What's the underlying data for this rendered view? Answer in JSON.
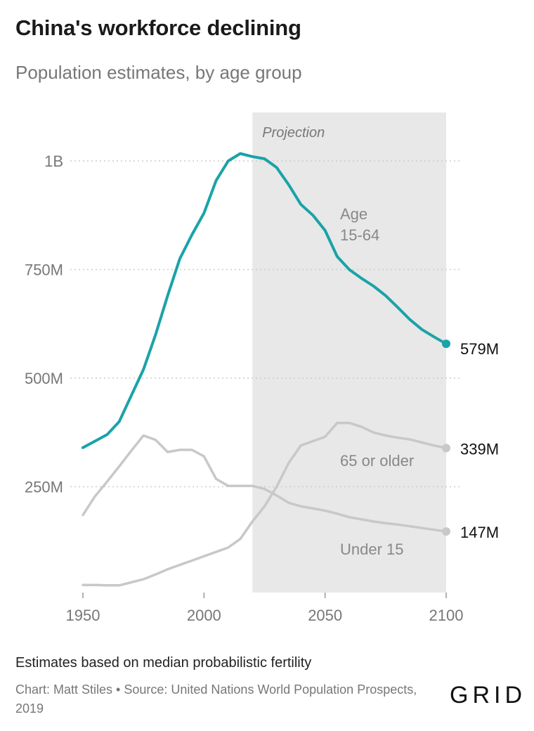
{
  "header": {
    "title": "China's workforce declining",
    "subtitle": "Population estimates, by age group"
  },
  "footer": {
    "note": "Estimates based on median probabilistic fertility",
    "credit": "Chart: Matt Stiles • Source: United Nations World Population Prospects, 2019",
    "logo": "GRID"
  },
  "colors": {
    "working_age": "#1aa3a8",
    "other": "#c8c8c8",
    "projection_band": "#e8e8e8",
    "grid": "#cccccc"
  },
  "chart_data": {
    "type": "line",
    "title": "China's workforce declining",
    "subtitle": "Population estimates, by age group",
    "xlim": [
      1950,
      2100
    ],
    "ylim": [
      0,
      1100000000
    ],
    "x_ticks": [
      1950,
      2000,
      2050,
      2100
    ],
    "y_ticks": [
      {
        "value": 250000000,
        "label": "250M"
      },
      {
        "value": 500000000,
        "label": "500M"
      },
      {
        "value": 750000000,
        "label": "750M"
      },
      {
        "value": 1000000000,
        "label": "1B"
      }
    ],
    "grid": "horizontal dotted",
    "projection": {
      "label": "Projection",
      "from": 2020,
      "to": 2100
    },
    "series": [
      {
        "name": "Age 15-64",
        "label_lines": [
          "Age",
          "15-64"
        ],
        "end_label": "579M",
        "x": [
          1950,
          1955,
          1960,
          1965,
          1970,
          1975,
          1980,
          1985,
          1990,
          1995,
          2000,
          2005,
          2010,
          2015,
          2020,
          2025,
          2030,
          2035,
          2040,
          2045,
          2050,
          2055,
          2060,
          2065,
          2070,
          2075,
          2080,
          2085,
          2090,
          2095,
          2100
        ],
        "values": [
          340000000,
          355000000,
          370000000,
          400000000,
          460000000,
          520000000,
          600000000,
          690000000,
          775000000,
          830000000,
          880000000,
          955000000,
          1000000000,
          1017000000,
          1010000000,
          1005000000,
          985000000,
          945000000,
          900000000,
          875000000,
          840000000,
          780000000,
          750000000,
          730000000,
          712000000,
          690000000,
          663000000,
          635000000,
          612000000,
          595000000,
          579000000
        ]
      },
      {
        "name": "65 or older",
        "label_lines": [
          "65 or older"
        ],
        "end_label": "339M",
        "x": [
          1950,
          1955,
          1960,
          1965,
          1970,
          1975,
          1980,
          1985,
          1990,
          1995,
          2000,
          2005,
          2010,
          2015,
          2020,
          2025,
          2030,
          2035,
          2040,
          2045,
          2050,
          2055,
          2060,
          2065,
          2070,
          2075,
          2080,
          2085,
          2090,
          2095,
          2100
        ],
        "values": [
          24000000,
          24000000,
          23000000,
          23000000,
          30000000,
          37000000,
          48000000,
          60000000,
          70000000,
          80000000,
          90000000,
          100000000,
          110000000,
          130000000,
          170000000,
          205000000,
          250000000,
          305000000,
          345000000,
          355000000,
          365000000,
          397000000,
          397000000,
          388000000,
          375000000,
          368000000,
          363000000,
          359000000,
          352000000,
          345000000,
          339000000
        ]
      },
      {
        "name": "Under 15",
        "label_lines": [
          "Under 15"
        ],
        "end_label": "147M",
        "x": [
          1950,
          1955,
          1960,
          1965,
          1970,
          1975,
          1980,
          1985,
          1990,
          1995,
          2000,
          2005,
          2010,
          2015,
          2020,
          2025,
          2030,
          2035,
          2040,
          2045,
          2050,
          2055,
          2060,
          2065,
          2070,
          2075,
          2080,
          2085,
          2090,
          2095,
          2100
        ],
        "values": [
          185000000,
          228000000,
          262000000,
          297000000,
          333000000,
          368000000,
          358000000,
          330000000,
          335000000,
          335000000,
          320000000,
          268000000,
          252000000,
          252000000,
          252000000,
          245000000,
          230000000,
          213000000,
          205000000,
          200000000,
          195000000,
          188000000,
          180000000,
          175000000,
          170000000,
          166000000,
          163000000,
          159000000,
          155000000,
          151000000,
          147000000
        ]
      }
    ]
  }
}
